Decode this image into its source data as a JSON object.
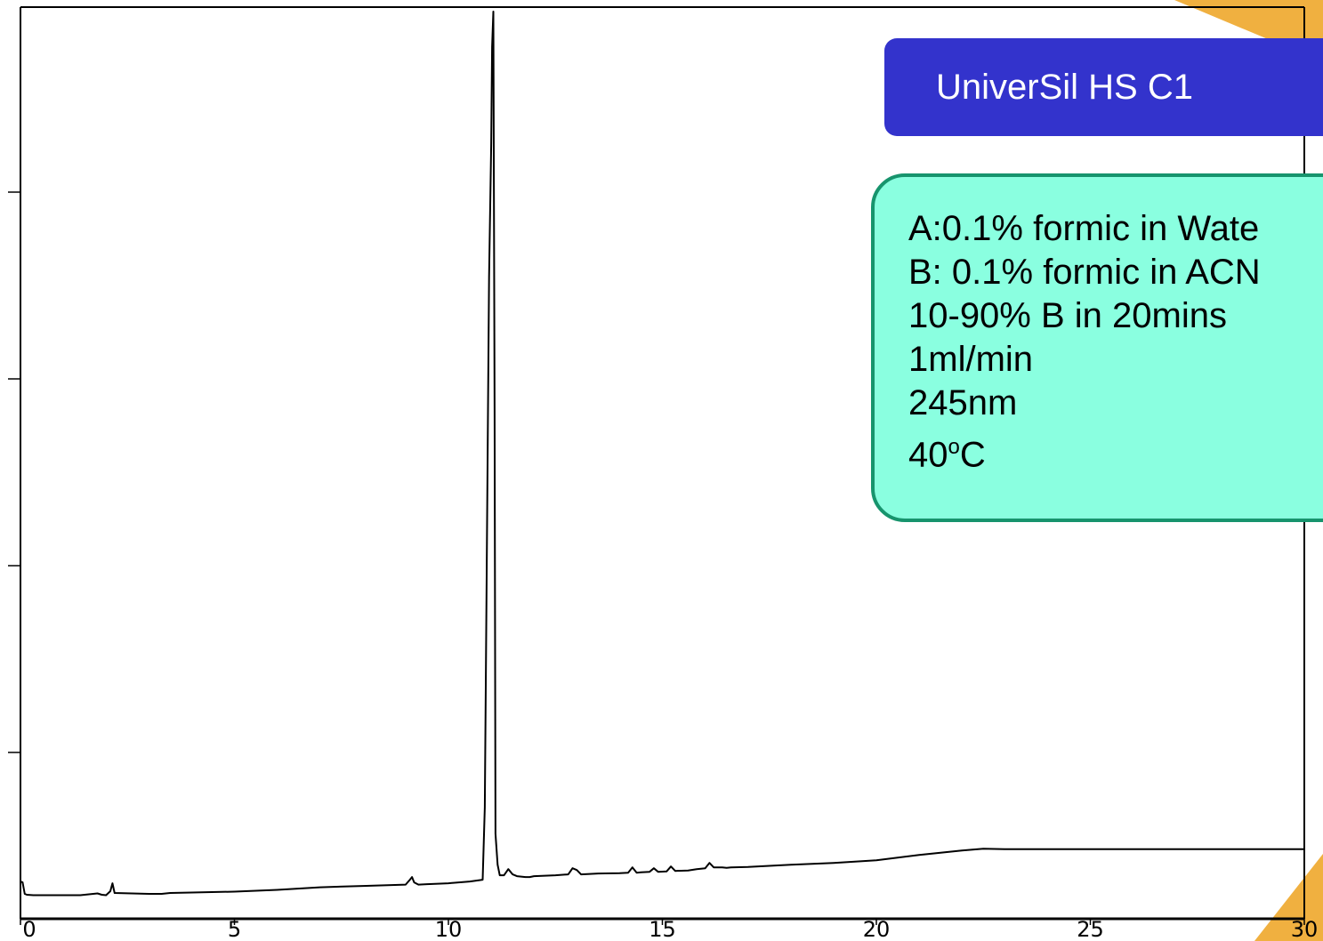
{
  "colors": {
    "title_bg": "#3333cc",
    "conditions_bg": "#8affe0",
    "conditions_border": "#17946d",
    "accent_corner": "#f0b040",
    "trace": "#000000"
  },
  "title_box": {
    "text": "UniverSil HS C1"
  },
  "conditions": [
    {
      "text": "A:0.1% formic in Wate"
    },
    {
      "text": "B: 0.1% formic in ACN"
    },
    {
      "text": "10-90% B in 20mins"
    },
    {
      "text": "1ml/min"
    },
    {
      "text": "245nm"
    },
    {
      "text": "40",
      "sup": "o",
      "unit": "C"
    }
  ],
  "chart_data": {
    "type": "line",
    "title": "",
    "xlabel": "",
    "ylabel": "",
    "xlim": [
      0,
      30
    ],
    "ylim": [
      0,
      100
    ],
    "x_ticks": [
      0,
      5,
      10,
      15,
      20,
      25,
      30
    ],
    "x_tick_labels": [
      "0",
      "5",
      "10",
      "15",
      "20",
      "25",
      "30"
    ],
    "y_ticks": [
      20,
      40,
      60,
      80
    ],
    "y_tick_labels": [],
    "grid": false,
    "series": [
      {
        "name": "",
        "x": [
          0,
          0.05,
          0.1,
          0.15,
          0.3,
          1.2,
          1.3,
          1.4,
          1.8,
          1.9,
          2.0,
          2.1,
          2.15,
          2.2,
          3.0,
          3.3,
          3.5,
          4.0,
          5.0,
          6.0,
          7.0,
          8.0,
          9.0,
          9.1,
          9.15,
          9.2,
          9.3,
          9.5,
          10.0,
          10.5,
          10.8,
          10.85,
          10.9,
          10.95,
          11.0,
          11.02,
          11.05,
          11.08,
          11.1,
          11.15,
          11.2,
          11.3,
          11.4,
          11.5,
          11.6,
          11.8,
          11.9,
          12.0,
          12.5,
          12.8,
          12.9,
          13.0,
          13.1,
          13.5,
          14.0,
          14.2,
          14.3,
          14.4,
          14.5,
          14.7,
          14.8,
          14.9,
          15.1,
          15.2,
          15.3,
          15.6,
          15.8,
          16.0,
          16.1,
          16.2,
          16.4,
          16.5,
          16.6,
          17.0,
          18.0,
          19.0,
          20.0,
          21.0,
          22.0,
          22.5,
          23.0,
          25.0,
          29.0,
          30.0
        ],
        "y": [
          1.6,
          1.5,
          0.2,
          0.1,
          0.05,
          0.05,
          0.05,
          0.05,
          0.25,
          0.1,
          0.05,
          0.5,
          1.4,
          0.3,
          0.2,
          0.2,
          0.3,
          0.35,
          0.45,
          0.65,
          0.95,
          1.1,
          1.25,
          1.8,
          2.1,
          1.5,
          1.25,
          1.3,
          1.4,
          1.6,
          1.8,
          10.0,
          40.0,
          70.0,
          85.0,
          96.0,
          100.0,
          55.0,
          7.0,
          3.5,
          2.3,
          2.3,
          3.0,
          2.4,
          2.2,
          2.1,
          2.1,
          2.2,
          2.3,
          2.4,
          3.1,
          2.9,
          2.4,
          2.5,
          2.55,
          2.6,
          3.2,
          2.6,
          2.65,
          2.7,
          3.1,
          2.7,
          2.75,
          3.3,
          2.8,
          2.85,
          3.0,
          3.1,
          3.7,
          3.2,
          3.2,
          3.15,
          3.2,
          3.25,
          3.5,
          3.7,
          4.0,
          4.6,
          5.1,
          5.3,
          5.25,
          5.25,
          5.25,
          5.25
        ]
      }
    ]
  }
}
